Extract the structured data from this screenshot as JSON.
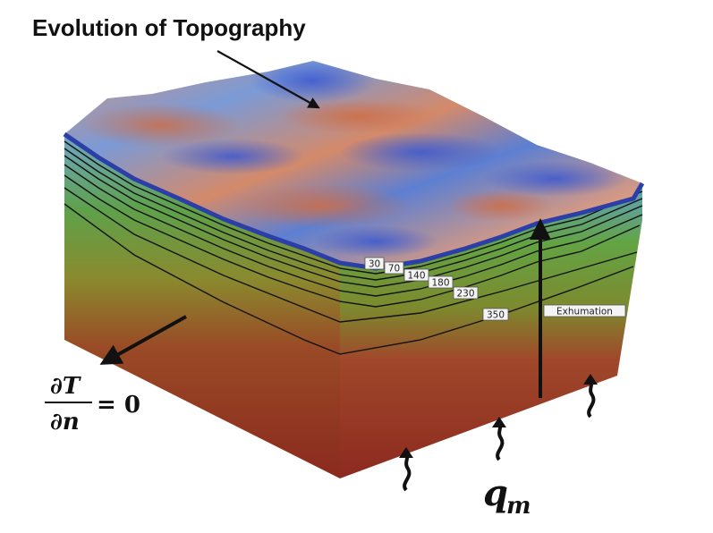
{
  "title": "Evolution of Topography",
  "isotherms": [
    {
      "label": "30"
    },
    {
      "label": "70"
    },
    {
      "label": "140"
    },
    {
      "label": "180"
    },
    {
      "label": "230"
    },
    {
      "label": "350"
    }
  ],
  "exhumation_label": "Exhumation",
  "boundary_condition": {
    "partial_top": "∂T",
    "partial_bottom": "∂n",
    "equals": "= 0"
  },
  "heat_flux": {
    "symbol": "q",
    "subscript": "m"
  },
  "colors": {
    "low_elevation": "#3a55c8",
    "high_elevation": "#c8704e",
    "green_layer": "#6aa63a",
    "deep_crust": "#8a2a1e"
  }
}
